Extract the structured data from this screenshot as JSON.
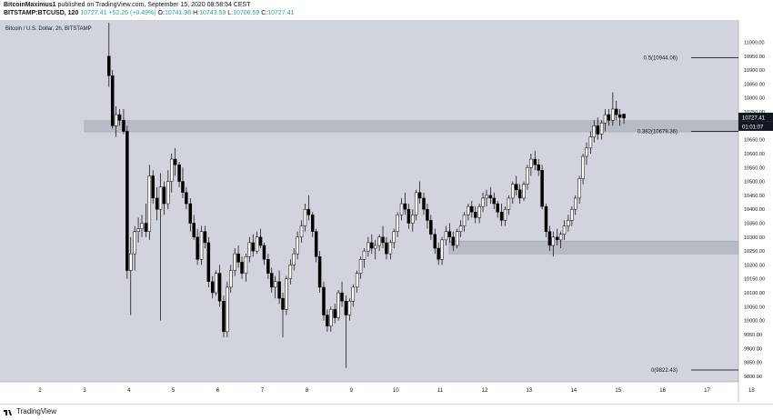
{
  "header": {
    "author": "BitcoinMaximus1",
    "published_text": "published on TradingView.com, September 15, 2020 08:58:54 CEST",
    "symbol": "BITSTAMP:BTCUSD, 120",
    "last": "10727.41",
    "change": "+52.26 (+0.49%)",
    "o_label": "O:",
    "o_val": "10741.98",
    "h_label": "H:",
    "h_val": "10743.59",
    "l_label": "L:",
    "l_val": "10706.59",
    "c_label": "C:",
    "c_val": "10727.41"
  },
  "footer": {
    "brand": "TradingView"
  },
  "colors": {
    "background": "#ffffff",
    "plot_bg": "#d1d4dc",
    "zone": "#b3b6bf",
    "candle": "#000000",
    "up_fill": "#ffffff",
    "accent": "#26a69a"
  },
  "chart_data": {
    "type": "candlestick",
    "title": "Bitcoin / U.S. Dollar, 2h, BITSTAMP",
    "ylim": [
      9780,
      11080
    ],
    "x_ticks": [
      "2",
      "3",
      "4",
      "5",
      "6",
      "7",
      "8",
      "9",
      "10",
      "11",
      "12",
      "13",
      "14",
      "15",
      "16",
      "17",
      "18"
    ],
    "y_ticks": [
      11000,
      10950,
      10900,
      10850,
      10800,
      10750,
      10650,
      10600,
      10550,
      10500,
      10450,
      10400,
      10350,
      10300,
      10250,
      10200,
      10150,
      10100,
      10050,
      10000,
      9950,
      9900,
      9850,
      9800
    ],
    "y_tick_labels": [
      "11000.00",
      "10950.00",
      "10900.00",
      "10850.00",
      "10800.00",
      "10750.00",
      "10650.00",
      "10600.00",
      "10550.00",
      "10500.00",
      "10450.00",
      "10400.00",
      "10350.00",
      "10300.00",
      "10250.00",
      "10200.00",
      "10150.00",
      "10100.00",
      "10050.00",
      "10000.00",
      "9950.00",
      "9900.00",
      "9850.00",
      "9800.00"
    ],
    "price_label": "10727.41",
    "countdown_label": "01:01:07",
    "fib_levels": [
      {
        "label": "0.5(10944.06)",
        "value": 10944.06
      },
      {
        "label": "0.382(10679.36)",
        "value": 10679.36
      },
      {
        "label": "0(9822.43)",
        "value": 9822.43
      }
    ],
    "zones": [
      {
        "from_day": 3.0,
        "to_day": 18.0,
        "low": 10678,
        "high": 10718
      },
      {
        "from_day": 11.2,
        "to_day": 18.0,
        "low": 10240,
        "high": 10286
      }
    ],
    "candles": [
      [
        3.55,
        10950,
        11070,
        10840,
        10880
      ],
      [
        3.63,
        10880,
        10900,
        10690,
        10700
      ],
      [
        3.71,
        10700,
        10770,
        10660,
        10740
      ],
      [
        3.79,
        10740,
        10760,
        10700,
        10720
      ],
      [
        3.88,
        10720,
        10760,
        10670,
        10680
      ],
      [
        3.96,
        10680,
        10700,
        10150,
        10180
      ],
      [
        4.04,
        10180,
        10300,
        10020,
        10240
      ],
      [
        4.13,
        10240,
        10340,
        10180,
        10320
      ],
      [
        4.21,
        10320,
        10370,
        10280,
        10330
      ],
      [
        4.29,
        10330,
        10380,
        10300,
        10350
      ],
      [
        4.38,
        10350,
        10420,
        10300,
        10320
      ],
      [
        4.46,
        10320,
        10560,
        10290,
        10520
      ],
      [
        4.54,
        10520,
        10540,
        10420,
        10440
      ],
      [
        4.63,
        10440,
        10480,
        10360,
        10400
      ],
      [
        4.71,
        10400,
        10530,
        10000,
        10480
      ],
      [
        4.79,
        10480,
        10500,
        10380,
        10420
      ],
      [
        4.88,
        10420,
        10540,
        10400,
        10500
      ],
      [
        4.96,
        10500,
        10600,
        10460,
        10580
      ],
      [
        5.04,
        10580,
        10620,
        10520,
        10560
      ],
      [
        5.13,
        10560,
        10570,
        10480,
        10500
      ],
      [
        5.21,
        10500,
        10550,
        10440,
        10460
      ],
      [
        5.29,
        10460,
        10480,
        10400,
        10420
      ],
      [
        5.38,
        10420,
        10440,
        10320,
        10350
      ],
      [
        5.46,
        10350,
        10380,
        10290,
        10300
      ],
      [
        5.54,
        10300,
        10330,
        10200,
        10220
      ],
      [
        5.63,
        10220,
        10340,
        10200,
        10320
      ],
      [
        5.71,
        10320,
        10340,
        10260,
        10280
      ],
      [
        5.79,
        10280,
        10300,
        10120,
        10140
      ],
      [
        5.88,
        10140,
        10160,
        10080,
        10100
      ],
      [
        5.96,
        10100,
        10180,
        10090,
        10170
      ],
      [
        6.04,
        10170,
        10200,
        10050,
        10070
      ],
      [
        6.13,
        10070,
        10090,
        9940,
        9960
      ],
      [
        6.21,
        9960,
        10140,
        9940,
        10120
      ],
      [
        6.29,
        10120,
        10200,
        10100,
        10180
      ],
      [
        6.38,
        10180,
        10260,
        10160,
        10240
      ],
      [
        6.46,
        10240,
        10270,
        10190,
        10210
      ],
      [
        6.54,
        10210,
        10230,
        10150,
        10170
      ],
      [
        6.63,
        10170,
        10240,
        10140,
        10230
      ],
      [
        6.71,
        10230,
        10300,
        10210,
        10280
      ],
      [
        6.79,
        10280,
        10310,
        10230,
        10250
      ],
      [
        6.88,
        10250,
        10320,
        10240,
        10300
      ],
      [
        6.96,
        10300,
        10330,
        10260,
        10270
      ],
      [
        7.04,
        10270,
        10280,
        10200,
        10220
      ],
      [
        7.13,
        10220,
        10240,
        10150,
        10170
      ],
      [
        7.21,
        10170,
        10190,
        10100,
        10120
      ],
      [
        7.29,
        10120,
        10160,
        10080,
        10140
      ],
      [
        7.38,
        10140,
        10180,
        10060,
        10080
      ],
      [
        7.46,
        10080,
        10100,
        9940,
        10040
      ],
      [
        7.54,
        10040,
        10160,
        10020,
        10150
      ],
      [
        7.63,
        10150,
        10220,
        10130,
        10200
      ],
      [
        7.71,
        10200,
        10260,
        10180,
        10240
      ],
      [
        7.79,
        10240,
        10320,
        10220,
        10300
      ],
      [
        7.88,
        10300,
        10360,
        10280,
        10340
      ],
      [
        7.96,
        10340,
        10420,
        10320,
        10400
      ],
      [
        8.04,
        10400,
        10450,
        10360,
        10380
      ],
      [
        8.13,
        10380,
        10390,
        10300,
        10320
      ],
      [
        8.21,
        10320,
        10330,
        10210,
        10230
      ],
      [
        8.29,
        10230,
        10250,
        10100,
        10120
      ],
      [
        8.38,
        10120,
        10140,
        10000,
        10020
      ],
      [
        8.46,
        10020,
        10040,
        9960,
        9980
      ],
      [
        8.54,
        9980,
        10050,
        9960,
        10040
      ],
      [
        8.63,
        10040,
        10060,
        9990,
        10010
      ],
      [
        8.71,
        10010,
        10110,
        10000,
        10100
      ],
      [
        8.79,
        10100,
        10140,
        10050,
        10070
      ],
      [
        8.88,
        10070,
        10090,
        9830,
        10020
      ],
      [
        8.96,
        10020,
        10080,
        10000,
        10070
      ],
      [
        9.04,
        10070,
        10130,
        10050,
        10120
      ],
      [
        9.13,
        10120,
        10180,
        10100,
        10170
      ],
      [
        9.21,
        10170,
        10230,
        10150,
        10220
      ],
      [
        9.29,
        10220,
        10260,
        10190,
        10250
      ],
      [
        9.38,
        10250,
        10300,
        10230,
        10280
      ],
      [
        9.46,
        10280,
        10310,
        10240,
        10260
      ],
      [
        9.54,
        10260,
        10290,
        10220,
        10270
      ],
      [
        9.63,
        10270,
        10310,
        10250,
        10300
      ],
      [
        9.71,
        10300,
        10340,
        10260,
        10280
      ],
      [
        9.79,
        10280,
        10300,
        10220,
        10240
      ],
      [
        9.88,
        10240,
        10290,
        10220,
        10280
      ],
      [
        9.96,
        10280,
        10330,
        10260,
        10320
      ],
      [
        10.04,
        10320,
        10390,
        10300,
        10380
      ],
      [
        10.13,
        10380,
        10440,
        10360,
        10420
      ],
      [
        10.21,
        10420,
        10460,
        10380,
        10400
      ],
      [
        10.29,
        10400,
        10420,
        10330,
        10350
      ],
      [
        10.38,
        10350,
        10400,
        10320,
        10380
      ],
      [
        10.46,
        10380,
        10470,
        10360,
        10460
      ],
      [
        10.54,
        10460,
        10500,
        10420,
        10440
      ],
      [
        10.63,
        10440,
        10460,
        10380,
        10400
      ],
      [
        10.71,
        10400,
        10420,
        10330,
        10360
      ],
      [
        10.79,
        10360,
        10380,
        10290,
        10310
      ],
      [
        10.88,
        10310,
        10330,
        10240,
        10260
      ],
      [
        10.96,
        10260,
        10280,
        10200,
        10220
      ],
      [
        11.04,
        10220,
        10300,
        10200,
        10290
      ],
      [
        11.13,
        10290,
        10340,
        10270,
        10320
      ],
      [
        11.21,
        10320,
        10350,
        10280,
        10300
      ],
      [
        11.29,
        10300,
        10320,
        10250,
        10270
      ],
      [
        11.38,
        10270,
        10330,
        10260,
        10320
      ],
      [
        11.46,
        10320,
        10360,
        10300,
        10340
      ],
      [
        11.54,
        10340,
        10390,
        10320,
        10380
      ],
      [
        11.63,
        10380,
        10420,
        10360,
        10410
      ],
      [
        11.71,
        10410,
        10430,
        10370,
        10390
      ],
      [
        11.79,
        10390,
        10410,
        10350,
        10370
      ],
      [
        11.88,
        10370,
        10420,
        10350,
        10410
      ],
      [
        11.96,
        10410,
        10460,
        10390,
        10440
      ],
      [
        12.04,
        10440,
        10470,
        10410,
        10450
      ],
      [
        12.13,
        10450,
        10480,
        10420,
        10440
      ],
      [
        12.21,
        10440,
        10460,
        10400,
        10420
      ],
      [
        12.29,
        10420,
        10430,
        10370,
        10390
      ],
      [
        12.38,
        10390,
        10420,
        10340,
        10360
      ],
      [
        12.46,
        10360,
        10410,
        10340,
        10400
      ],
      [
        12.54,
        10400,
        10450,
        10380,
        10440
      ],
      [
        12.63,
        10440,
        10500,
        10420,
        10490
      ],
      [
        12.71,
        10490,
        10520,
        10450,
        10470
      ],
      [
        12.79,
        10470,
        10490,
        10420,
        10440
      ],
      [
        12.88,
        10440,
        10500,
        10430,
        10490
      ],
      [
        12.96,
        10490,
        10560,
        10470,
        10550
      ],
      [
        13.04,
        10550,
        10600,
        10520,
        10580
      ],
      [
        13.13,
        10580,
        10610,
        10540,
        10560
      ],
      [
        13.21,
        10560,
        10580,
        10520,
        10540
      ],
      [
        13.29,
        10540,
        10560,
        10400,
        10410
      ],
      [
        13.38,
        10410,
        10420,
        10300,
        10320
      ],
      [
        13.46,
        10320,
        10340,
        10250,
        10270
      ],
      [
        13.54,
        10270,
        10320,
        10230,
        10300
      ],
      [
        13.63,
        10300,
        10330,
        10270,
        10290
      ],
      [
        13.71,
        10290,
        10320,
        10260,
        10310
      ],
      [
        13.79,
        10310,
        10360,
        10290,
        10340
      ],
      [
        13.88,
        10340,
        10380,
        10320,
        10360
      ],
      [
        13.96,
        10360,
        10410,
        10340,
        10400
      ],
      [
        14.04,
        10400,
        10450,
        10380,
        10440
      ],
      [
        14.13,
        10440,
        10520,
        10420,
        10510
      ],
      [
        14.21,
        10510,
        10600,
        10490,
        10590
      ],
      [
        14.29,
        10590,
        10640,
        10560,
        10620
      ],
      [
        14.38,
        10620,
        10680,
        10600,
        10660
      ],
      [
        14.46,
        10660,
        10720,
        10640,
        10700
      ],
      [
        14.54,
        10700,
        10730,
        10650,
        10670
      ],
      [
        14.63,
        10670,
        10720,
        10650,
        10710
      ],
      [
        14.71,
        10710,
        10760,
        10680,
        10740
      ],
      [
        14.79,
        10740,
        10760,
        10700,
        10720
      ],
      [
        14.88,
        10720,
        10820,
        10700,
        10760
      ],
      [
        14.96,
        10760,
        10790,
        10720,
        10740
      ],
      [
        15.04,
        10740,
        10760,
        10700,
        10730
      ],
      [
        15.13,
        10741.98,
        10743.59,
        10706.59,
        10727.41
      ]
    ]
  }
}
